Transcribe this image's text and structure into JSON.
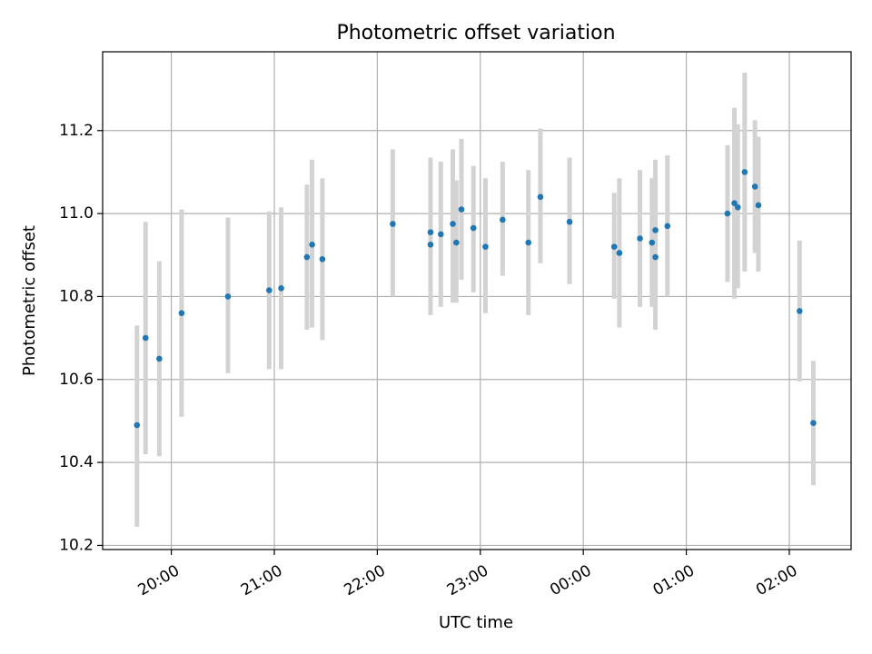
{
  "chart_data": {
    "type": "scatter",
    "title": "Photometric offset variation",
    "xlabel": "UTC time",
    "ylabel": "Photometric offset",
    "xlim": [
      "19:20",
      "26:36"
    ],
    "ylim": [
      10.19,
      11.39
    ],
    "x_ticks": [
      {
        "t": "20:00",
        "label": "20:00"
      },
      {
        "t": "21:00",
        "label": "21:00"
      },
      {
        "t": "22:00",
        "label": "22:00"
      },
      {
        "t": "23:00",
        "label": "23:00"
      },
      {
        "t": "24:00",
        "label": "00:00"
      },
      {
        "t": "25:00",
        "label": "01:00"
      },
      {
        "t": "26:00",
        "label": "02:00"
      }
    ],
    "y_ticks": [
      "10.2",
      "10.4",
      "10.6",
      "10.8",
      "11.0",
      "11.2"
    ],
    "grid": true,
    "colors": {
      "marker": "#1f77b4",
      "errorbar": "#d3d3d3",
      "grid": "#b0b0b0"
    },
    "series": [
      {
        "points": [
          {
            "t": "19:40",
            "y": 10.49,
            "lo": 10.245,
            "hi": 10.73
          },
          {
            "t": "19:45",
            "y": 10.7,
            "lo": 10.42,
            "hi": 10.98
          },
          {
            "t": "19:53",
            "y": 10.65,
            "lo": 10.415,
            "hi": 10.885
          },
          {
            "t": "20:06",
            "y": 10.76,
            "lo": 10.51,
            "hi": 11.01
          },
          {
            "t": "20:33",
            "y": 10.8,
            "lo": 10.615,
            "hi": 10.99
          },
          {
            "t": "20:57",
            "y": 10.815,
            "lo": 10.625,
            "hi": 11.005
          },
          {
            "t": "21:04",
            "y": 10.82,
            "lo": 10.625,
            "hi": 11.015
          },
          {
            "t": "21:19",
            "y": 10.895,
            "lo": 10.72,
            "hi": 11.07
          },
          {
            "t": "21:22",
            "y": 10.925,
            "lo": 10.725,
            "hi": 11.13
          },
          {
            "t": "21:28",
            "y": 10.89,
            "lo": 10.695,
            "hi": 11.085
          },
          {
            "t": "22:09",
            "y": 10.975,
            "lo": 10.8,
            "hi": 11.155
          },
          {
            "t": "22:31",
            "y": 10.925,
            "lo": 10.755,
            "hi": 11.135
          },
          {
            "t": "22:31",
            "y": 10.955,
            "lo": 10.775,
            "hi": 11.125
          },
          {
            "t": "22:37",
            "y": 10.95,
            "lo": 10.775,
            "hi": 11.125
          },
          {
            "t": "22:44",
            "y": 10.975,
            "lo": 10.785,
            "hi": 11.155
          },
          {
            "t": "22:46",
            "y": 10.93,
            "lo": 10.785,
            "hi": 11.08
          },
          {
            "t": "22:49",
            "y": 11.01,
            "lo": 10.84,
            "hi": 11.18
          },
          {
            "t": "22:56",
            "y": 10.965,
            "lo": 10.81,
            "hi": 11.115
          },
          {
            "t": "23:03",
            "y": 10.92,
            "lo": 10.76,
            "hi": 11.085
          },
          {
            "t": "23:13",
            "y": 10.985,
            "lo": 10.85,
            "hi": 11.125
          },
          {
            "t": "23:28",
            "y": 10.93,
            "lo": 10.755,
            "hi": 11.105
          },
          {
            "t": "23:35",
            "y": 11.04,
            "lo": 10.88,
            "hi": 11.205
          },
          {
            "t": "23:52",
            "y": 10.98,
            "lo": 10.83,
            "hi": 11.135
          },
          {
            "t": "24:18",
            "y": 10.92,
            "lo": 10.795,
            "hi": 11.05
          },
          {
            "t": "24:21",
            "y": 10.905,
            "lo": 10.725,
            "hi": 11.085
          },
          {
            "t": "24:33",
            "y": 10.94,
            "lo": 10.775,
            "hi": 11.105
          },
          {
            "t": "24:40",
            "y": 10.93,
            "lo": 10.775,
            "hi": 11.085
          },
          {
            "t": "24:42",
            "y": 10.895,
            "lo": 10.72,
            "hi": 11.07
          },
          {
            "t": "24:42",
            "y": 10.96,
            "lo": 10.79,
            "hi": 11.13
          },
          {
            "t": "24:49",
            "y": 10.97,
            "lo": 10.8,
            "hi": 11.14
          },
          {
            "t": "25:24",
            "y": 11.0,
            "lo": 10.835,
            "hi": 11.165
          },
          {
            "t": "25:28",
            "y": 11.025,
            "lo": 10.795,
            "hi": 11.255
          },
          {
            "t": "25:30",
            "y": 11.015,
            "lo": 10.82,
            "hi": 11.215
          },
          {
            "t": "25:34",
            "y": 11.1,
            "lo": 10.86,
            "hi": 11.34
          },
          {
            "t": "25:40",
            "y": 11.065,
            "lo": 10.905,
            "hi": 11.225
          },
          {
            "t": "25:42",
            "y": 11.02,
            "lo": 10.86,
            "hi": 11.185
          },
          {
            "t": "26:06",
            "y": 10.765,
            "lo": 10.595,
            "hi": 10.935
          },
          {
            "t": "26:14",
            "y": 10.495,
            "lo": 10.345,
            "hi": 10.645
          }
        ]
      }
    ]
  }
}
